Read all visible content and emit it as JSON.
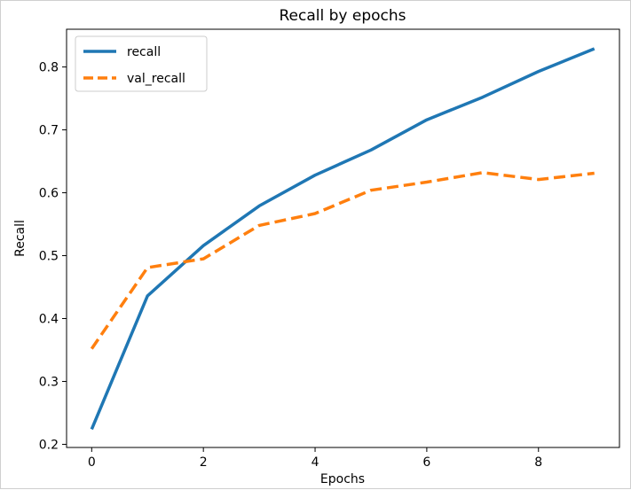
{
  "chart_data": {
    "type": "line",
    "title": "Recall by epochs",
    "xlabel": "Epochs",
    "ylabel": "Recall",
    "x": [
      0,
      1,
      2,
      3,
      4,
      5,
      6,
      7,
      8,
      9
    ],
    "xlim": [
      -0.45,
      9.45
    ],
    "ylim": [
      0.195,
      0.86
    ],
    "xticks": [
      0,
      2,
      4,
      6,
      8
    ],
    "yticks": [
      0.2,
      0.3,
      0.4,
      0.5,
      0.6,
      0.7,
      0.8
    ],
    "grid": false,
    "legend_position": "top-left",
    "series": [
      {
        "name": "recall",
        "color": "#1f77b4",
        "style": "solid",
        "values": [
          0.224,
          0.436,
          0.516,
          0.579,
          0.628,
          0.668,
          0.716,
          0.752,
          0.793,
          0.829
        ]
      },
      {
        "name": "val_recall",
        "color": "#ff7f0e",
        "style": "dashed",
        "values": [
          0.352,
          0.481,
          0.495,
          0.548,
          0.567,
          0.604,
          0.617,
          0.632,
          0.621,
          0.631
        ]
      }
    ]
  }
}
